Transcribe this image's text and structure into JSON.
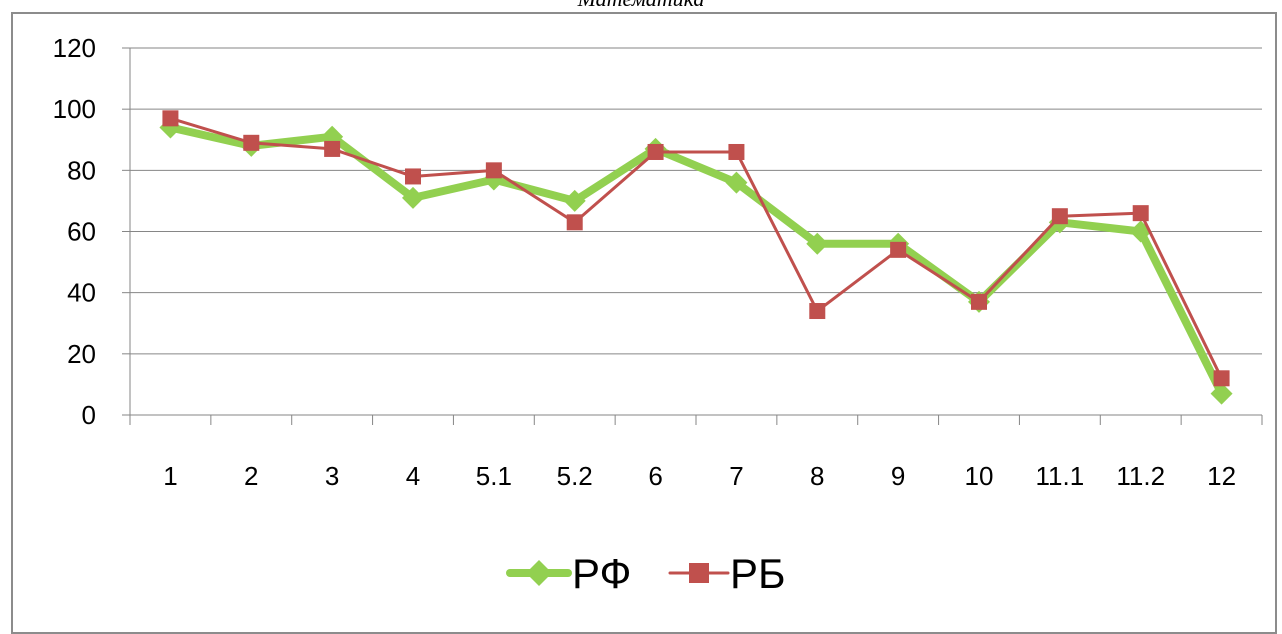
{
  "chart_data": {
    "type": "line",
    "title": "Математика",
    "categories": [
      "1",
      "2",
      "3",
      "4",
      "5.1",
      "5.2",
      "6",
      "7",
      "8",
      "9",
      "10",
      "11.1",
      "11.2",
      "12"
    ],
    "series": [
      {
        "name": "РФ",
        "color": "#92d050",
        "marker": "diamond",
        "values": [
          94,
          88,
          91,
          71,
          77,
          70,
          87,
          76,
          56,
          56,
          37,
          63,
          60,
          7
        ]
      },
      {
        "name": "РБ",
        "color": "#c0504d",
        "marker": "square",
        "values": [
          97,
          89,
          87,
          78,
          80,
          63,
          86,
          86,
          34,
          54,
          37,
          65,
          66,
          12
        ]
      }
    ],
    "ylim": [
      0,
      120
    ],
    "yticks": [
      "0",
      "20",
      "40",
      "60",
      "80",
      "100",
      "120"
    ],
    "grid": true,
    "legend": "bottom"
  }
}
